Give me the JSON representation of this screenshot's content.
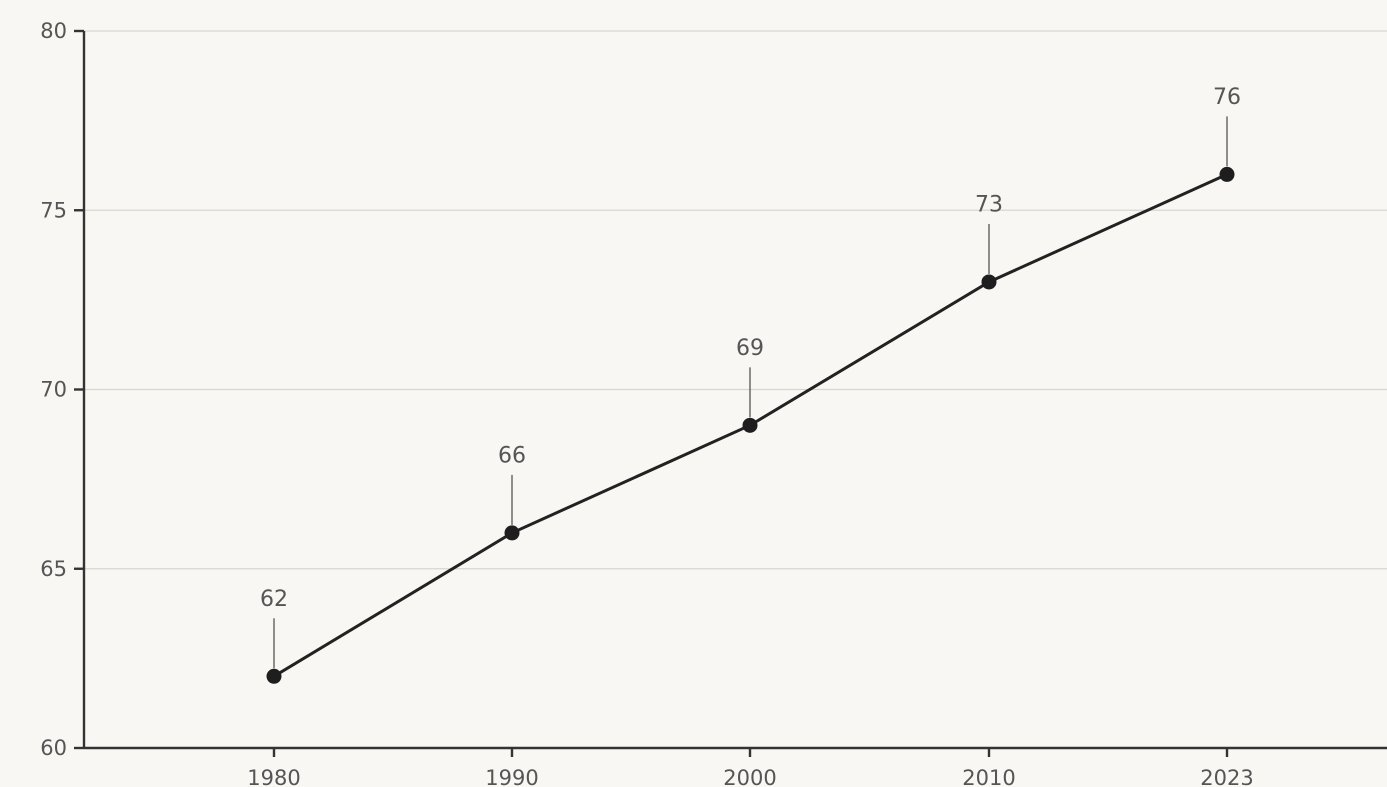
{
  "chart_data": {
    "type": "line",
    "title": "",
    "xlabel": "",
    "ylabel": "",
    "categories": [
      "1980",
      "1990",
      "2000",
      "2010",
      "2023"
    ],
    "values": [
      62,
      66,
      69,
      73,
      76
    ],
    "data_labels": [
      "62",
      "66",
      "69",
      "73",
      "76"
    ],
    "ylim": [
      60,
      80
    ],
    "yticks": [
      60,
      65,
      70,
      75,
      80
    ],
    "ytick_labels": [
      "60",
      "65",
      "70",
      "75",
      "80"
    ],
    "grid": true,
    "legend": "none",
    "colors": {
      "background": "#f9f7f4",
      "line": "#222222",
      "point": "#1e1e1e",
      "grid": "#d9d6d2",
      "text": "#555555"
    }
  }
}
